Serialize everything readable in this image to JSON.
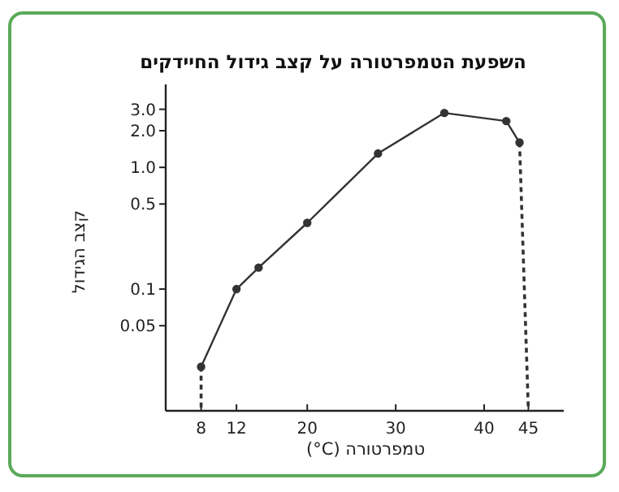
{
  "chart_data": {
    "type": "line",
    "title": "השפעת הטמפרטורה על קצב גידול החיידקים",
    "xlabel": "טמפרטורה (‎°C)",
    "ylabel": "קצב הגידול",
    "log": "y",
    "xlim": [
      4,
      49
    ],
    "ylim": [
      0.01,
      4.8
    ],
    "xticks": [
      8,
      12,
      20,
      30,
      40,
      45
    ],
    "yticks": [
      0.05,
      0.1,
      0.5,
      {
        "value": 1,
        "label": "1.0"
      },
      {
        "value": 2,
        "label": "2.0"
      },
      {
        "value": 3,
        "label": "3.0"
      }
    ],
    "series": [
      {
        "color": "#333333",
        "marker": "circle",
        "line_style": "solid",
        "x": [
          8,
          12,
          14.5,
          20,
          28,
          35.5,
          42.5,
          44
        ],
        "values": [
          0.023,
          0.1,
          0.15,
          0.35,
          1.3,
          2.8,
          2.4,
          1.6
        ]
      },
      {
        "color": "#333333",
        "marker": "none",
        "line_style": "dashed",
        "x": [
          8,
          8
        ],
        "values": [
          0.023,
          0.01
        ]
      },
      {
        "color": "#333333",
        "marker": "none",
        "line_style": "dashed",
        "x": [
          44,
          45
        ],
        "values": [
          1.6,
          0.01
        ]
      }
    ]
  }
}
